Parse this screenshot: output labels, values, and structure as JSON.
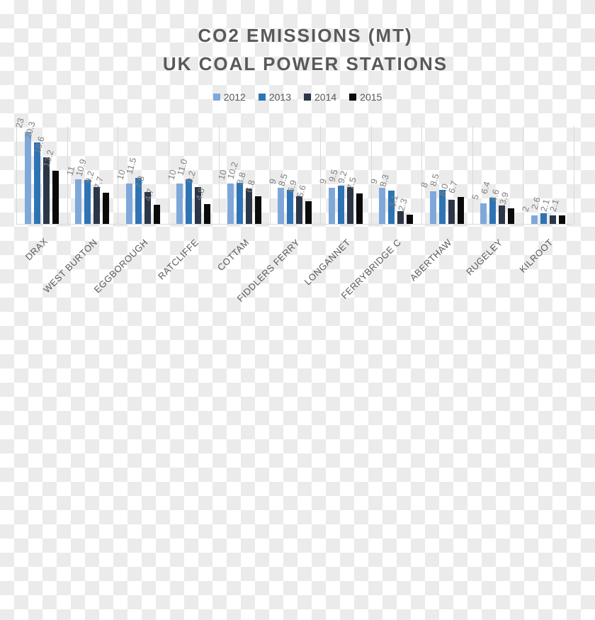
{
  "title": {
    "line1": "CO2 EMISSIONS (MT)",
    "line2": "UK COAL POWER STATIONS"
  },
  "colors": {
    "checker_white": "#FFFFFF",
    "checker_gray": "#EBEBEB",
    "axis": "#D9D9D9",
    "gridline": "#D9D9D9",
    "title_text": "#595959",
    "legend_text": "#595959",
    "data_label": "#7F7F7F",
    "category_label": "#595959"
  },
  "chart_data": {
    "type": "bar",
    "title": "CO2 EMISSIONS (MT) UK COAL POWER STATIONS",
    "xlabel": "",
    "ylabel": "",
    "ylim": [
      0,
      23
    ],
    "grid": "vertical category separators only",
    "legend_position": "top",
    "categories": [
      "DRAX",
      "WEST BURTON",
      "EGGBOROUGH",
      "RATCLIFFE",
      "COTTAM",
      "FIDDLERS FERRY",
      "LONGANNET",
      "FERRYBRIDGE C",
      "ABERTHAW",
      "RUGELEY",
      "KILROOT"
    ],
    "series": [
      {
        "name": "2012",
        "color": "#7FA8DA",
        "values": [
          23,
          11,
          10,
          10,
          10,
          9,
          9,
          9,
          8,
          5,
          2
        ],
        "labels": [
          "23",
          "11",
          "10",
          "10",
          "10",
          "9",
          "9",
          "9",
          "8",
          "5",
          "2"
        ]
      },
      {
        "name": "2013",
        "color": "#2E74B5",
        "values": [
          20.3,
          10.9,
          11.5,
          11.0,
          10.2,
          8.5,
          9.5,
          8.3,
          8.5,
          6.4,
          2.6
        ],
        "labels": [
          "20.3",
          "10.9",
          "11.5",
          "11.0",
          "10.2",
          "8.5",
          "9.5",
          "8.3",
          "8.5",
          "6.4",
          "2.6"
        ]
      },
      {
        "name": "2014",
        "color": "#2B3648",
        "values": [
          16.6,
          9.2,
          7.8,
          9.2,
          8.8,
          6.9,
          9.2,
          3.1,
          6.0,
          4.6,
          2.1
        ],
        "labels": [
          "16.6",
          "9.2",
          "7.8",
          "9.2",
          "8.8",
          "6.9",
          "9.2",
          "3.1",
          "6.0",
          "4.6",
          "2.1"
        ]
      },
      {
        "name": "2015",
        "color": "#0A0A0A",
        "values": [
          13.2,
          7.7,
          4.7,
          4.8,
          6.8,
          5.6,
          7.5,
          2.3,
          6.7,
          3.9,
          2.1
        ],
        "labels": [
          "13.2",
          "7.7",
          "4.7",
          "4.8",
          "6.8",
          "5.6",
          "7.5",
          "2.3",
          "6.7",
          "3.9",
          "2.1"
        ]
      }
    ]
  }
}
